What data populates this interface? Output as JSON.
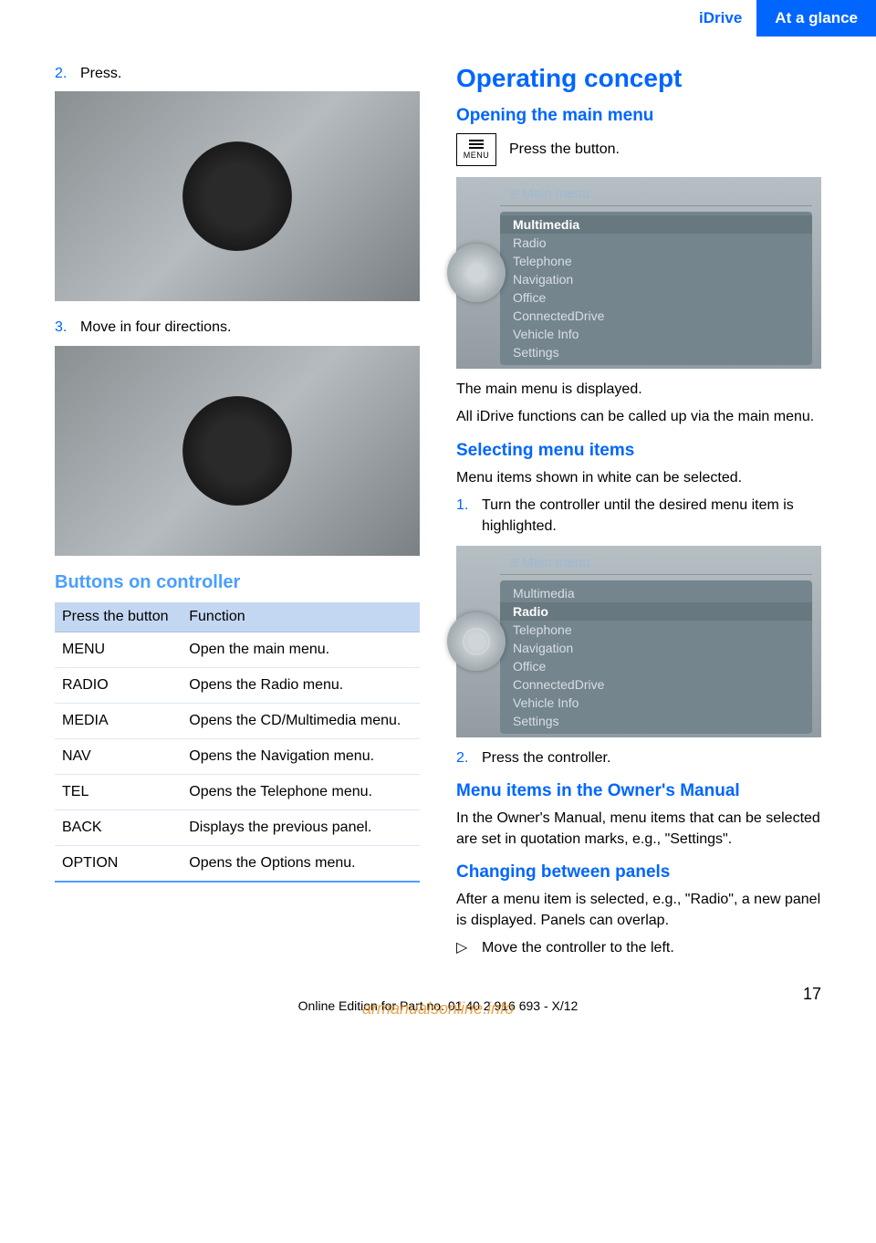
{
  "header": {
    "section": "iDrive",
    "chapter": "At a glance"
  },
  "left": {
    "step2": {
      "num": "2.",
      "text": "Press."
    },
    "step3": {
      "num": "3.",
      "text": "Move in four directions."
    },
    "buttons_heading": "Buttons on controller",
    "table": {
      "headers": [
        "Press the button",
        "Function"
      ],
      "rows": [
        [
          "MENU",
          "Open the main menu."
        ],
        [
          "RADIO",
          "Opens the Radio menu."
        ],
        [
          "MEDIA",
          "Opens the CD/Multimedia menu."
        ],
        [
          "NAV",
          "Opens the Navigation menu."
        ],
        [
          "TEL",
          "Opens the Telephone menu."
        ],
        [
          "BACK",
          "Displays the previous panel."
        ],
        [
          "OPTION",
          "Opens the Options menu."
        ]
      ],
      "header_bg": "#c4d7f2",
      "row_border": "#dde7f4",
      "bottom_border": "#4a9eff"
    }
  },
  "right": {
    "h1": "Operating concept",
    "opening": {
      "heading": "Opening the main menu",
      "instruction": "Press the button.",
      "icon_text": "MENU",
      "menu": {
        "title": "Main menu",
        "items": [
          "Multimedia",
          "Radio",
          "Telephone",
          "Navigation",
          "Office",
          "ConnectedDrive",
          "Vehicle Info",
          "Settings"
        ],
        "highlighted_index": 0
      },
      "para1": "The main menu is displayed.",
      "para2": "All iDrive functions can be called up via the main menu."
    },
    "selecting": {
      "heading": "Selecting menu items",
      "intro": "Menu items shown in white can be selected.",
      "step1": {
        "num": "1.",
        "text": "Turn the controller until the desired menu item is highlighted."
      },
      "menu": {
        "title": "Main menu",
        "items": [
          "Multimedia",
          "Radio",
          "Telephone",
          "Navigation",
          "Office",
          "ConnectedDrive",
          "Vehicle Info",
          "Settings"
        ],
        "highlighted_index": 1
      },
      "step2": {
        "num": "2.",
        "text": "Press the controller."
      }
    },
    "menuitems_manual": {
      "heading": "Menu items in the Owner's Manual",
      "text": "In the Owner's Manual, menu items that can be selected are set in quotation marks, e.g., \"Settings\"."
    },
    "changing": {
      "heading": "Changing between panels",
      "text": "After a menu item is selected, e.g., \"Radio\", a new panel is displayed. Panels can overlap.",
      "bullet": {
        "mark": "▷",
        "text": "Move the controller to the left."
      }
    }
  },
  "footer": {
    "text": "Online Edition for Part no. 01 40 2 916 693 - X/12",
    "watermark": "armanualsonline.info",
    "page": "17"
  },
  "colors": {
    "brand_blue": "#0066ff",
    "light_blue": "#4a9eff"
  }
}
